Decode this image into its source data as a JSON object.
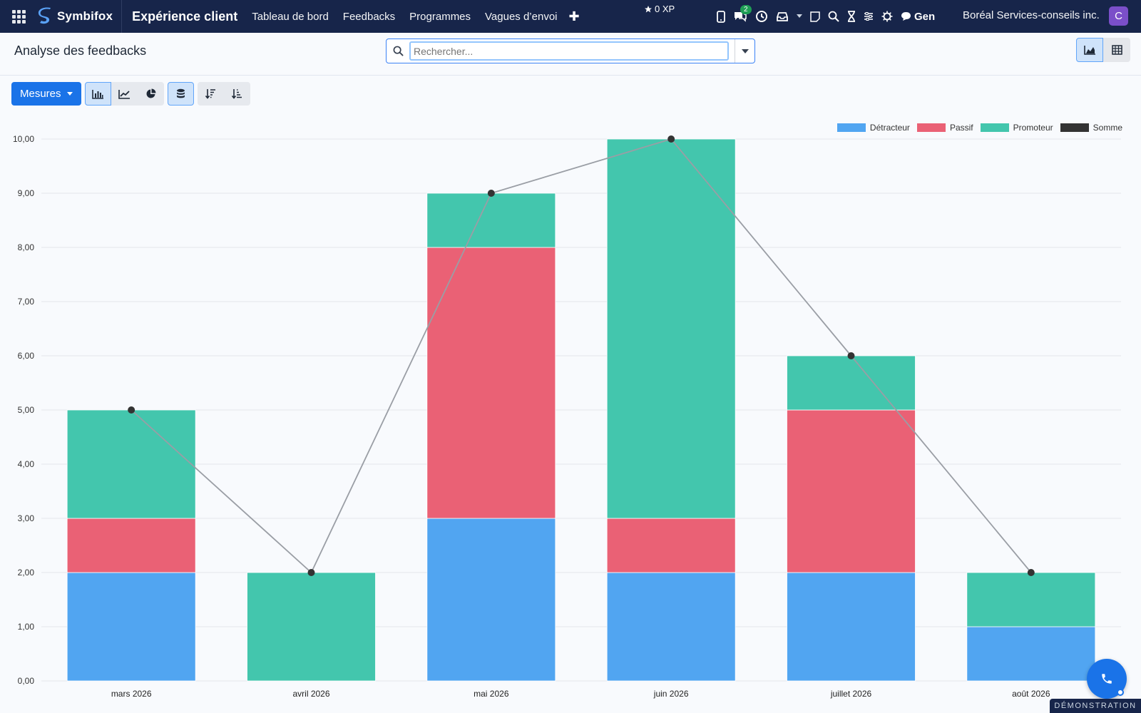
{
  "topbar": {
    "brand": "Symbifox",
    "app_title": "Expérience client",
    "nav": [
      "Tableau de bord",
      "Feedbacks",
      "Programmes",
      "Vagues d’envoi"
    ],
    "xp": "0 XP",
    "messages_count": "2",
    "gen_label": "Gen",
    "company": "Boréal Services-conseils inc.",
    "avatar_letter": "C"
  },
  "control": {
    "title": "Analyse des feedbacks",
    "search_placeholder": "Rechercher..."
  },
  "toolbar": {
    "measures_label": "Mesures"
  },
  "chart_data": {
    "type": "bar",
    "stacked": true,
    "categories": [
      "mars 2026",
      "avril 2026",
      "mai 2026",
      "juin 2026",
      "juillet 2026",
      "août 2026"
    ],
    "series": [
      {
        "name": "Détracteur",
        "color": "#51a5f1",
        "values": [
          2,
          0,
          3,
          2,
          2,
          1
        ]
      },
      {
        "name": "Passif",
        "color": "#ea6175",
        "values": [
          1,
          0,
          5,
          1,
          3,
          0
        ]
      },
      {
        "name": "Promoteur",
        "color": "#43c6ad",
        "values": [
          2,
          2,
          1,
          7,
          1,
          1
        ]
      }
    ],
    "line": {
      "name": "Somme",
      "color": "#333333",
      "values": [
        5,
        2,
        9,
        10,
        6,
        2
      ]
    },
    "yticks": [
      "0,00",
      "1,00",
      "2,00",
      "3,00",
      "4,00",
      "5,00",
      "6,00",
      "7,00",
      "8,00",
      "9,00",
      "10,00"
    ],
    "ylim": [
      0,
      10
    ],
    "grid": true,
    "legend_position": "top-right"
  },
  "footer": {
    "demo_label": "DÉMONSTRATION"
  }
}
